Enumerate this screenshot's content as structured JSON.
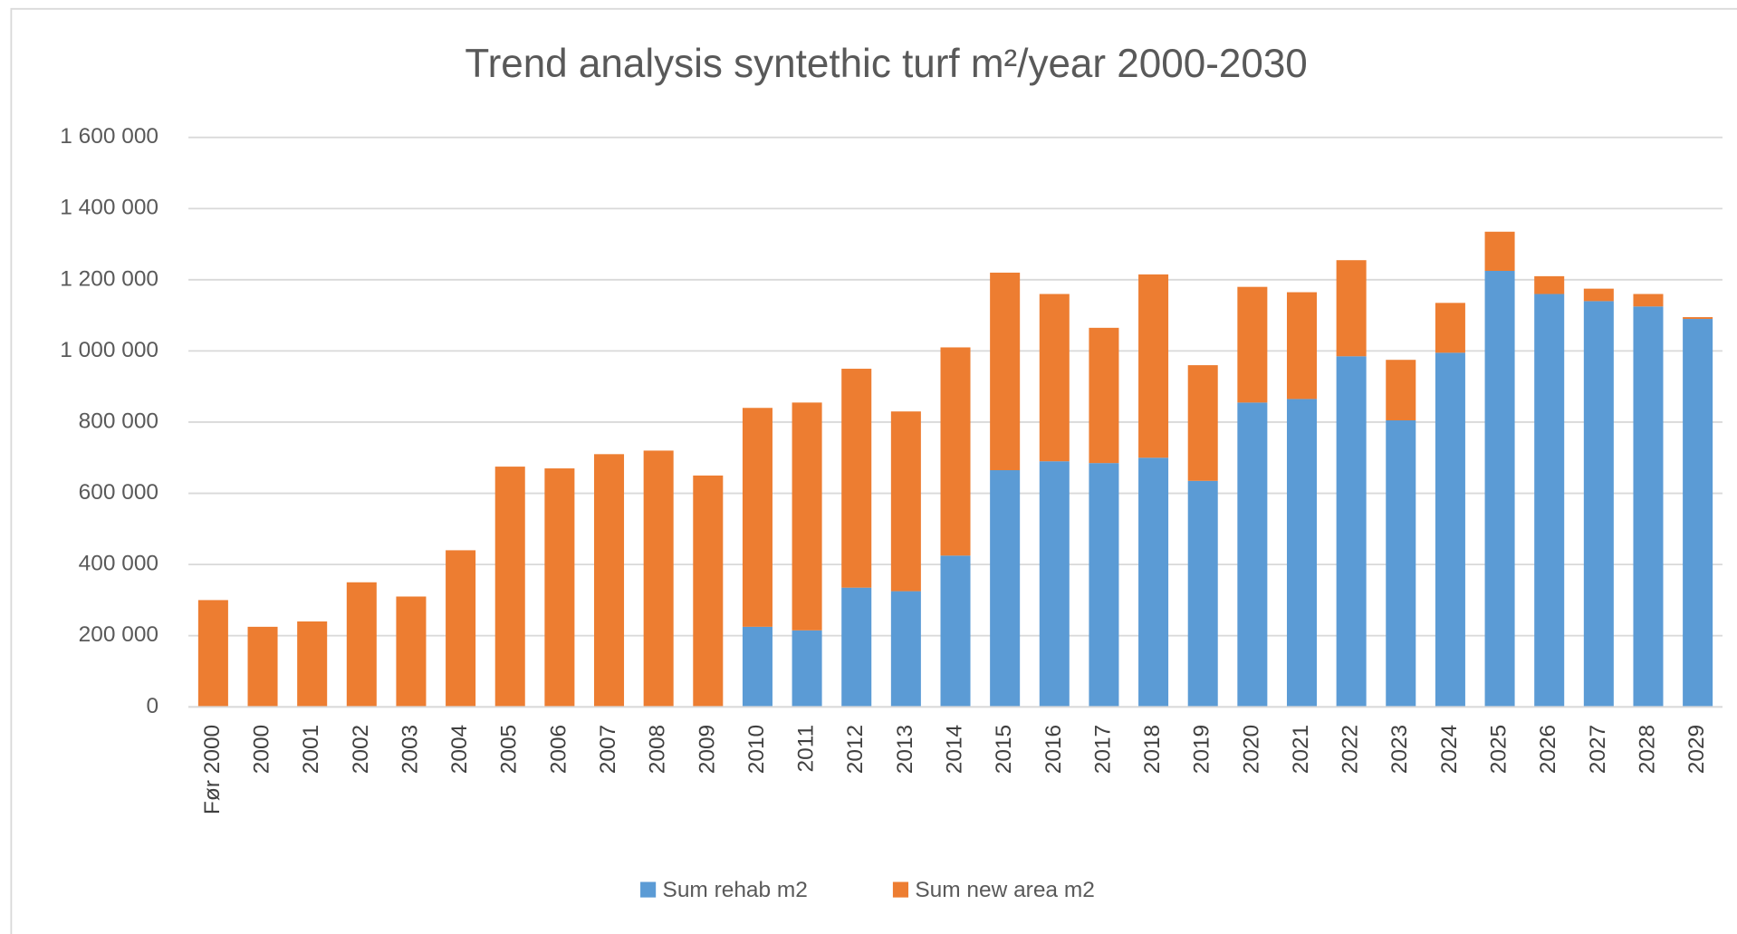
{
  "chart_data": {
    "type": "stacked-bar",
    "title": "Trend analysis syntethic turf m²/year 2000-2030",
    "categories": [
      "Før 2000",
      "2000",
      "2001",
      "2002",
      "2003",
      "2004",
      "2005",
      "2006",
      "2007",
      "2008",
      "2009",
      "2010",
      "2011",
      "2012",
      "2013",
      "2014",
      "2015",
      "2016",
      "2017",
      "2018",
      "2019",
      "2020",
      "2021",
      "2022",
      "2023",
      "2024",
      "2025",
      "2026",
      "2027",
      "2028",
      "2029"
    ],
    "series": [
      {
        "name": "Sum rehab m2",
        "color": "#5b9bd5",
        "values": [
          0,
          0,
          0,
          0,
          0,
          0,
          0,
          0,
          0,
          0,
          0,
          225000,
          215000,
          335000,
          325000,
          425000,
          665000,
          690000,
          685000,
          700000,
          635000,
          855000,
          865000,
          985000,
          805000,
          995000,
          1225000,
          1160000,
          1140000,
          1125000,
          1090000
        ]
      },
      {
        "name": "Sum new area m2",
        "color": "#ed7d31",
        "values": [
          300000,
          225000,
          240000,
          350000,
          310000,
          440000,
          675000,
          670000,
          710000,
          720000,
          650000,
          615000,
          640000,
          615000,
          505000,
          585000,
          555000,
          470000,
          380000,
          515000,
          325000,
          325000,
          300000,
          270000,
          170000,
          140000,
          110000,
          50000,
          35000,
          35000,
          5000
        ]
      }
    ],
    "ylim": [
      0,
      1600000
    ],
    "yticks": [
      0,
      {
        "value": 200000,
        "label": "200 000"
      },
      {
        "value": 400000,
        "label": "400 000"
      },
      {
        "value": 600000,
        "label": "600 000"
      },
      {
        "value": 800000,
        "label": "800 000"
      },
      {
        "value": 1000000,
        "label": "1 000 000"
      },
      {
        "value": 1200000,
        "label": "1 200 000"
      },
      {
        "value": 1400000,
        "label": "1 400 000"
      },
      {
        "value": 1600000,
        "label": "1 600 000"
      }
    ],
    "grid": true,
    "legend": "bottom"
  }
}
